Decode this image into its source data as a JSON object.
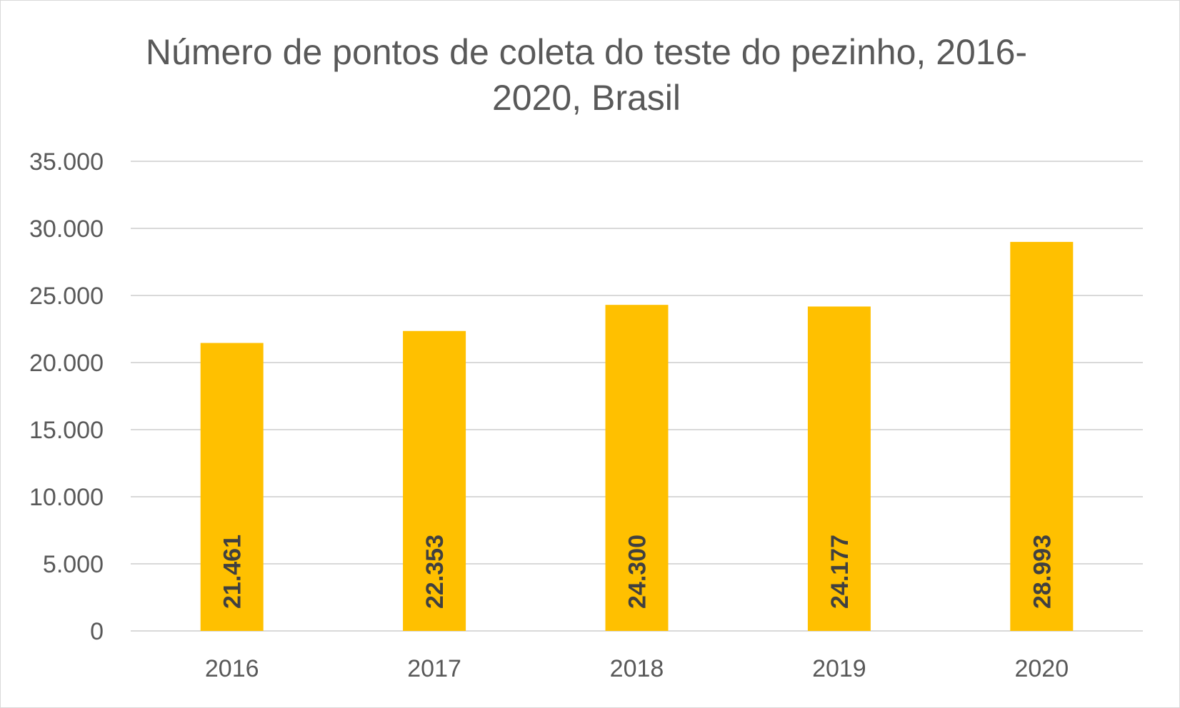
{
  "chart_data": {
    "type": "bar",
    "title": "Número de pontos de coleta do teste do pezinho, 2016-2020, Brasil",
    "categories": [
      "2016",
      "2017",
      "2018",
      "2019",
      "2020"
    ],
    "values": [
      21461,
      22353,
      24300,
      24177,
      28993
    ],
    "data_labels": [
      "21.461",
      "22.353",
      "24.300",
      "24.177",
      "28.993"
    ],
    "ylim": [
      0,
      35000
    ],
    "y_ticks": [
      0,
      5000,
      10000,
      15000,
      20000,
      25000,
      30000,
      35000
    ],
    "y_tick_labels": [
      "0",
      "5.000",
      "10.000",
      "15.000",
      "20.000",
      "25.000",
      "30.000",
      "35.000"
    ],
    "xlabel": "",
    "ylabel": "",
    "grid": true,
    "legend": "none",
    "bar_color": "#FFC000",
    "gridline_color": "#D9D9D9",
    "text_color": "#595959"
  }
}
